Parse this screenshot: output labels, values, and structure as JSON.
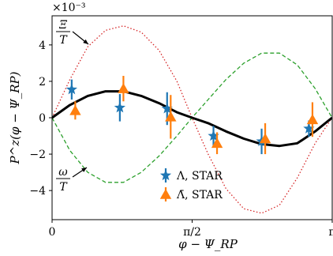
{
  "chart_data": {
    "type": "line",
    "ylabel": "P^z(φ − Ψ_RP)",
    "xlabel": "φ − Ψ_RP",
    "scale_label": "×10⁻³",
    "xlim": [
      0,
      3.14159265
    ],
    "ylim": [
      -5.6,
      5.6
    ],
    "xticks": [
      {
        "value": 0,
        "label": "0"
      },
      {
        "value": 1.5707963,
        "label": "π/2"
      },
      {
        "value": 3.14159265,
        "label": "π"
      }
    ],
    "yticks": [
      {
        "value": -4,
        "label": "−4"
      },
      {
        "value": -2,
        "label": "−2"
      },
      {
        "value": 0,
        "label": "0"
      },
      {
        "value": 2,
        "label": "2"
      },
      {
        "value": 4,
        "label": "4"
      }
    ],
    "legend_position": "lower-center",
    "annotations": [
      {
        "id": "xi",
        "num": "Ξ",
        "den": "T",
        "x": 0.42,
        "y": 4.2
      },
      {
        "id": "omega",
        "num": "ω",
        "den": "T",
        "x": 0.4,
        "y": -3.3
      }
    ],
    "curves": [
      {
        "style": "dotted",
        "color": "#d62728",
        "x": [
          0,
          0.2,
          0.4,
          0.6,
          0.8,
          1.0,
          1.2,
          1.4,
          1.57,
          1.75,
          1.95,
          2.15,
          2.35,
          2.55,
          2.75,
          2.95,
          3.14
        ],
        "y": [
          0.0,
          2.1,
          3.9,
          4.8,
          5.05,
          4.7,
          3.7,
          2.0,
          0.0,
          -2.0,
          -3.9,
          -5.0,
          -5.25,
          -4.8,
          -3.3,
          -1.4,
          0.0
        ]
      },
      {
        "style": "dashed",
        "color": "#2ca02c",
        "x": [
          0,
          0.2,
          0.4,
          0.6,
          0.8,
          1.0,
          1.2,
          1.4,
          1.57,
          1.75,
          1.95,
          2.15,
          2.35,
          2.55,
          2.75,
          2.95,
          3.14
        ],
        "y": [
          0.0,
          -1.8,
          -3.0,
          -3.55,
          -3.55,
          -3.0,
          -2.1,
          -1.0,
          0.0,
          1.0,
          2.1,
          3.0,
          3.55,
          3.55,
          2.9,
          1.6,
          0.0
        ]
      },
      {
        "style": "solid",
        "color": "#000000",
        "x": [
          0,
          0.2,
          0.4,
          0.6,
          0.8,
          1.0,
          1.2,
          1.4,
          1.57,
          1.75,
          1.95,
          2.15,
          2.35,
          2.55,
          2.75,
          2.95,
          3.14
        ],
        "y": [
          0.0,
          0.7,
          1.2,
          1.45,
          1.45,
          1.2,
          0.8,
          0.3,
          0.0,
          -0.3,
          -0.75,
          -1.15,
          -1.45,
          -1.55,
          -1.4,
          -0.75,
          0.0
        ]
      }
    ],
    "series": [
      {
        "name": "Λ, STAR",
        "marker": "star",
        "color": "#1f77b4",
        "points": [
          {
            "x": 0.22,
            "y": 1.55,
            "err": 0.55
          },
          {
            "x": 0.76,
            "y": 0.55,
            "err": 0.75
          },
          {
            "x": 1.29,
            "y": 0.5,
            "err": 0.9
          },
          {
            "x": 1.81,
            "y": -1.0,
            "err": 0.55
          },
          {
            "x": 2.35,
            "y": -1.3,
            "err": 0.7
          },
          {
            "x": 2.88,
            "y": -0.6,
            "err": 0.45
          }
        ]
      },
      {
        "name": "Λ̄, STAR",
        "marker": "triangle",
        "color": "#ff7f0e",
        "points": [
          {
            "x": 0.26,
            "y": 0.4,
            "err": 0.5
          },
          {
            "x": 0.8,
            "y": 1.6,
            "err": 0.7
          },
          {
            "x": 1.33,
            "y": 0.05,
            "err": 1.2
          },
          {
            "x": 1.85,
            "y": -1.4,
            "err": 0.6
          },
          {
            "x": 2.39,
            "y": -1.15,
            "err": 0.85
          },
          {
            "x": 2.92,
            "y": -0.1,
            "err": 0.95
          }
        ]
      }
    ]
  }
}
